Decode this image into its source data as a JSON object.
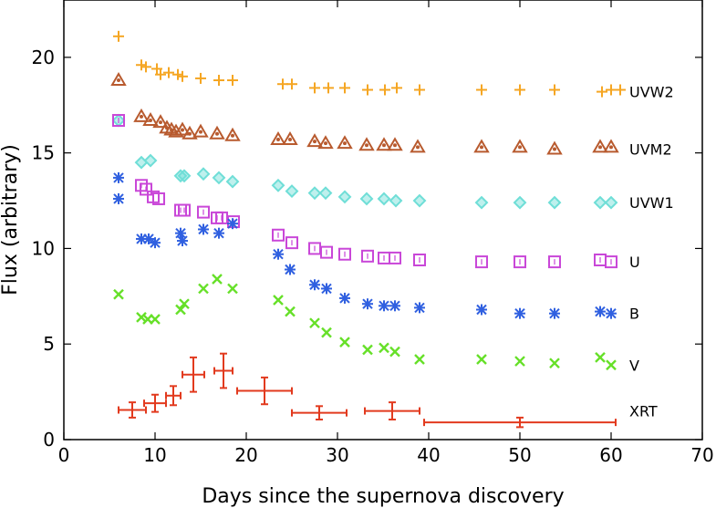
{
  "chart_data": {
    "type": "scatter",
    "title": "",
    "xlabel": "Days since the supernova discovery",
    "ylabel": "Flux (arbitrary)",
    "xlim": [
      0,
      70
    ],
    "ylim": [
      0,
      23
    ],
    "xticks": [
      0,
      10,
      20,
      30,
      40,
      50,
      60,
      70
    ],
    "yticks": [
      0,
      5,
      10,
      15,
      20
    ],
    "grid": false,
    "series": [
      {
        "name": "UVW2",
        "marker": "plus",
        "color": "#f5a623",
        "points": [
          [
            6,
            21.1
          ],
          [
            8.5,
            19.6
          ],
          [
            9,
            19.5
          ],
          [
            10.2,
            19.4
          ],
          [
            10.6,
            19.1
          ],
          [
            11.5,
            19.2
          ],
          [
            12.5,
            19.1
          ],
          [
            13,
            19.0
          ],
          [
            15,
            18.9
          ],
          [
            17,
            18.8
          ],
          [
            18.5,
            18.8
          ],
          [
            24,
            18.6
          ],
          [
            25,
            18.6
          ],
          [
            27.5,
            18.4
          ],
          [
            29,
            18.4
          ],
          [
            30.8,
            18.4
          ],
          [
            33.3,
            18.3
          ],
          [
            35.2,
            18.3
          ],
          [
            36.5,
            18.4
          ],
          [
            39,
            18.3
          ],
          [
            45.8,
            18.3
          ],
          [
            50,
            18.3
          ],
          [
            53.8,
            18.3
          ],
          [
            59,
            18.2
          ],
          [
            60,
            18.3
          ],
          [
            61,
            18.3
          ]
        ]
      },
      {
        "name": "UVM2",
        "marker": "triangle",
        "color": "#b85a2e",
        "points": [
          [
            6,
            18.8
          ],
          [
            8.5,
            16.9
          ],
          [
            9.5,
            16.7
          ],
          [
            10.6,
            16.6
          ],
          [
            11.3,
            16.3
          ],
          [
            11.8,
            16.2
          ],
          [
            12.3,
            16.1
          ],
          [
            13,
            16.2
          ],
          [
            13.8,
            16.0
          ],
          [
            15,
            16.1
          ],
          [
            16.8,
            16.0
          ],
          [
            18.5,
            15.9
          ],
          [
            23.5,
            15.7
          ],
          [
            24.8,
            15.7
          ],
          [
            27.5,
            15.6
          ],
          [
            28.7,
            15.5
          ],
          [
            30.8,
            15.5
          ],
          [
            33.2,
            15.4
          ],
          [
            35.1,
            15.4
          ],
          [
            36.3,
            15.4
          ],
          [
            38.8,
            15.3
          ],
          [
            45.8,
            15.3
          ],
          [
            50,
            15.3
          ],
          [
            53.8,
            15.2
          ],
          [
            58.8,
            15.3
          ],
          [
            60,
            15.3
          ]
        ]
      },
      {
        "name": "UVW1",
        "marker": "diamond",
        "color": "#6fded7",
        "points": [
          [
            6,
            16.7
          ],
          [
            8.5,
            14.5
          ],
          [
            9.5,
            14.6
          ],
          [
            12.8,
            13.8
          ],
          [
            13.2,
            13.8
          ],
          [
            15.3,
            13.9
          ],
          [
            17,
            13.7
          ],
          [
            18.5,
            13.5
          ],
          [
            23.5,
            13.3
          ],
          [
            25,
            13.0
          ],
          [
            27.5,
            12.9
          ],
          [
            28.7,
            12.9
          ],
          [
            30.8,
            12.7
          ],
          [
            33.2,
            12.6
          ],
          [
            35.1,
            12.6
          ],
          [
            36.4,
            12.5
          ],
          [
            39,
            12.5
          ],
          [
            45.8,
            12.4
          ],
          [
            50,
            12.4
          ],
          [
            53.8,
            12.4
          ],
          [
            58.8,
            12.4
          ],
          [
            60,
            12.4
          ]
        ]
      },
      {
        "name": "U",
        "marker": "square",
        "color": "#c947d8",
        "points": [
          [
            6,
            16.7
          ],
          [
            8.5,
            13.3
          ],
          [
            9,
            13.1
          ],
          [
            9.8,
            12.7
          ],
          [
            10.4,
            12.6
          ],
          [
            12.8,
            12.0
          ],
          [
            13.2,
            12.0
          ],
          [
            15.3,
            11.9
          ],
          [
            16.8,
            11.6
          ],
          [
            17.3,
            11.6
          ],
          [
            18.6,
            11.4
          ],
          [
            23.5,
            10.7
          ],
          [
            25,
            10.3
          ],
          [
            27.5,
            10.0
          ],
          [
            28.8,
            9.8
          ],
          [
            30.8,
            9.7
          ],
          [
            33.3,
            9.6
          ],
          [
            35.1,
            9.5
          ],
          [
            36.3,
            9.5
          ],
          [
            39,
            9.4
          ],
          [
            45.8,
            9.3
          ],
          [
            50,
            9.3
          ],
          [
            53.8,
            9.3
          ],
          [
            58.8,
            9.4
          ],
          [
            60,
            9.3
          ]
        ]
      },
      {
        "name": "B",
        "marker": "asterisk",
        "color": "#3060e0",
        "points": [
          [
            6,
            13.7
          ],
          [
            6,
            12.6
          ],
          [
            8.5,
            10.5
          ],
          [
            9.3,
            10.5
          ],
          [
            10,
            10.3
          ],
          [
            12.8,
            10.8
          ],
          [
            13,
            10.4
          ],
          [
            15.3,
            11.0
          ],
          [
            17,
            10.8
          ],
          [
            18.5,
            11.3
          ],
          [
            23.5,
            9.7
          ],
          [
            24.8,
            8.9
          ],
          [
            27.5,
            8.1
          ],
          [
            28.8,
            7.9
          ],
          [
            30.8,
            7.4
          ],
          [
            33.3,
            7.1
          ],
          [
            35.1,
            7.0
          ],
          [
            36.3,
            7.0
          ],
          [
            39,
            6.9
          ],
          [
            45.8,
            6.8
          ],
          [
            50,
            6.6
          ],
          [
            53.8,
            6.6
          ],
          [
            58.8,
            6.7
          ],
          [
            60,
            6.6
          ]
        ]
      },
      {
        "name": "V",
        "marker": "cross",
        "color": "#66e028",
        "points": [
          [
            6,
            7.6
          ],
          [
            8.5,
            6.4
          ],
          [
            9.2,
            6.3
          ],
          [
            10,
            6.3
          ],
          [
            12.8,
            6.8
          ],
          [
            13.2,
            7.1
          ],
          [
            15.3,
            7.9
          ],
          [
            16.8,
            8.4
          ],
          [
            18.5,
            7.9
          ],
          [
            23.5,
            7.3
          ],
          [
            24.8,
            6.7
          ],
          [
            27.5,
            6.1
          ],
          [
            28.8,
            5.6
          ],
          [
            30.8,
            5.1
          ],
          [
            33.3,
            4.7
          ],
          [
            35.1,
            4.8
          ],
          [
            36.3,
            4.6
          ],
          [
            39,
            4.2
          ],
          [
            45.8,
            4.2
          ],
          [
            50,
            4.1
          ],
          [
            53.8,
            4.0
          ],
          [
            58.8,
            4.3
          ],
          [
            60,
            3.9
          ]
        ]
      },
      {
        "name": "XRT",
        "marker": "errorbar",
        "color": "#e23a1e",
        "points": [
          {
            "x": 7.5,
            "y": 1.55,
            "xerr": 1.5,
            "yerr": 0.4
          },
          {
            "x": 10,
            "y": 1.9,
            "xerr": 1.2,
            "yerr": 0.45
          },
          {
            "x": 12,
            "y": 2.3,
            "xerr": 0.8,
            "yerr": 0.5
          },
          {
            "x": 14.2,
            "y": 3.4,
            "xerr": 1.2,
            "yerr": 0.9
          },
          {
            "x": 17.5,
            "y": 3.6,
            "xerr": 1.0,
            "yerr": 0.9
          },
          {
            "x": 22,
            "y": 2.55,
            "xerr": 3.0,
            "yerr": 0.7
          },
          {
            "x": 28,
            "y": 1.4,
            "xerr": 3.0,
            "yerr": 0.35
          },
          {
            "x": 36,
            "y": 1.5,
            "xerr": 3.0,
            "yerr": 0.45
          },
          {
            "x": 50,
            "y": 0.9,
            "xerr": 10.5,
            "yerr": 0.25
          }
        ]
      }
    ],
    "band_labels": [
      {
        "text": "UVW2",
        "y": 18.2
      },
      {
        "text": "UVM2",
        "y": 15.2
      },
      {
        "text": "UVW1",
        "y": 12.4
      },
      {
        "text": "U",
        "y": 9.3
      },
      {
        "text": "B",
        "y": 6.6
      },
      {
        "text": "V",
        "y": 3.9
      },
      {
        "text": "XRT",
        "y": 1.5
      }
    ]
  }
}
